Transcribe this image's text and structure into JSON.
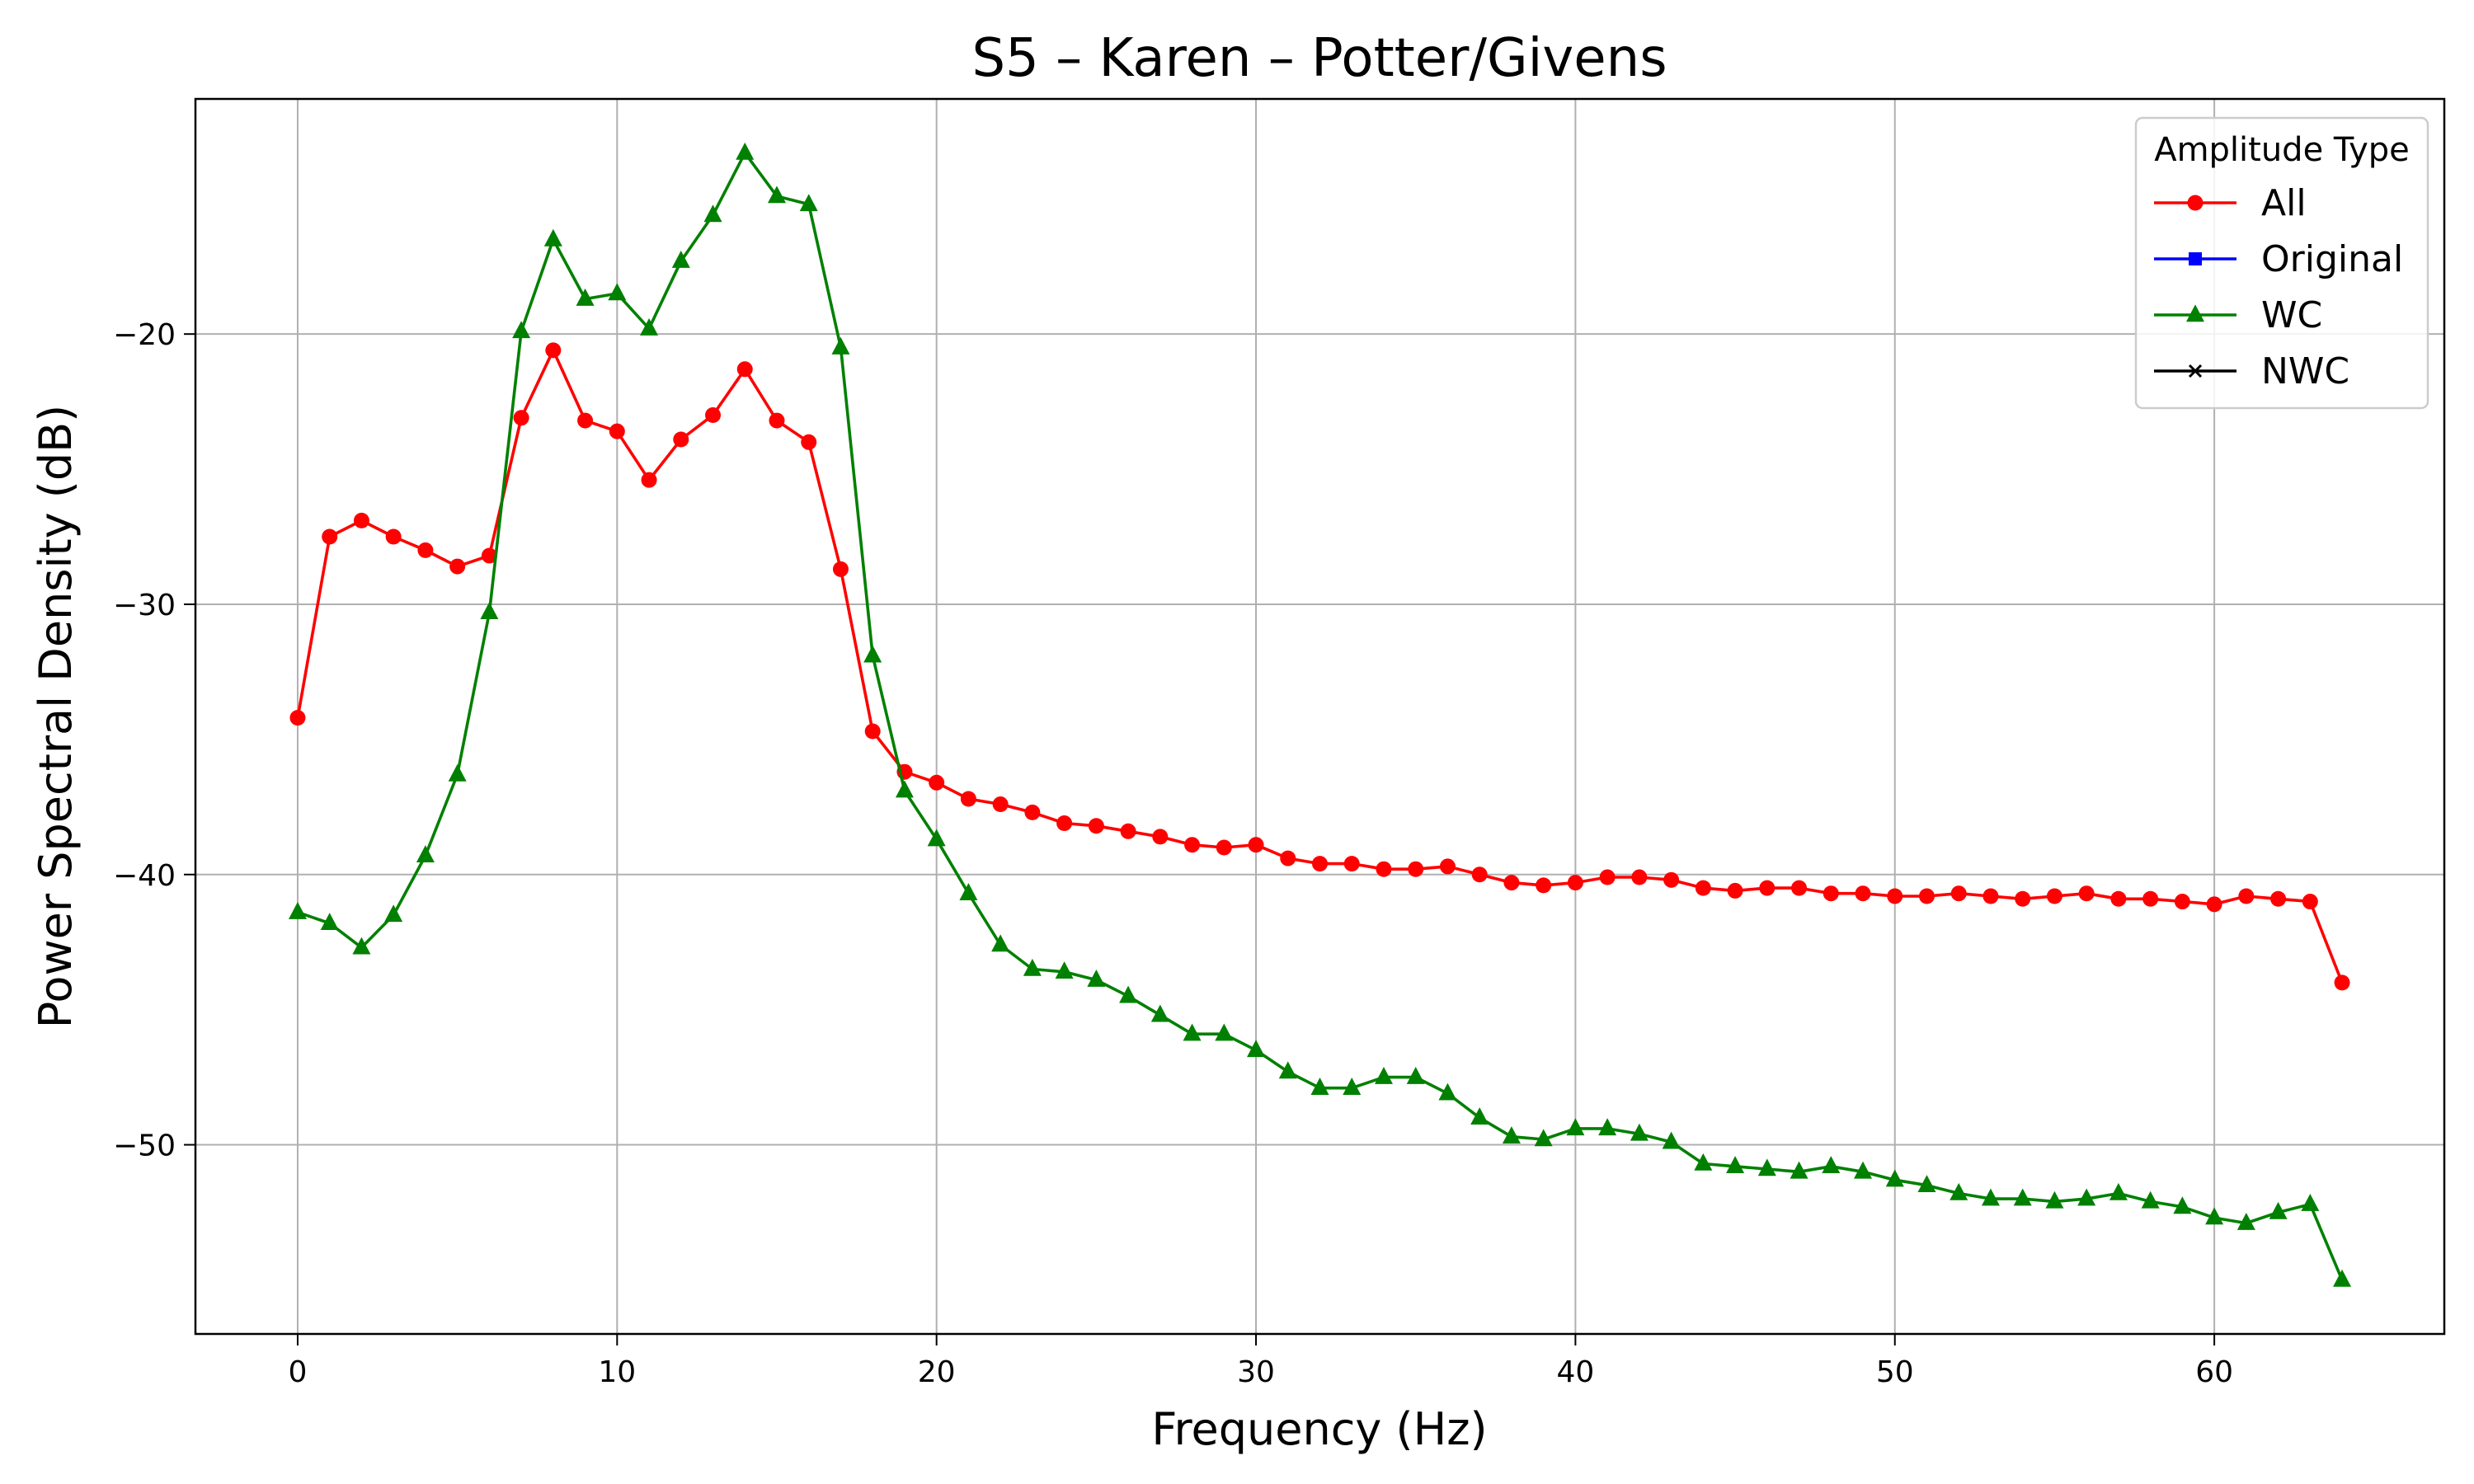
{
  "chart_data": {
    "type": "line",
    "title": "S5 – Karen – Potter/Givens",
    "xlabel": "Frequency (Hz)",
    "ylabel": "Power Spectral Density (dB)",
    "xlim": [
      -3.2,
      67.2
    ],
    "ylim": [
      -57.0,
      -11.3
    ],
    "xticks": [
      0,
      10,
      20,
      30,
      40,
      50,
      60
    ],
    "xtick_labels": [
      "0",
      "10",
      "20",
      "30",
      "40",
      "50",
      "60"
    ],
    "yticks": [
      -20,
      -30,
      -40,
      -50
    ],
    "ytick_labels": [
      "−20",
      "−30",
      "−40",
      "−50"
    ],
    "grid": true,
    "legend": {
      "title": "Amplitude Type",
      "placement": "top-right",
      "entries": [
        {
          "label": "All",
          "color": "#ff0000",
          "marker": "circle"
        },
        {
          "label": "Original",
          "color": "#0000ff",
          "marker": "square"
        },
        {
          "label": "WC",
          "color": "#008000",
          "marker": "triangle"
        },
        {
          "label": "NWC",
          "color": "#000000",
          "marker": "x"
        }
      ]
    },
    "x": [
      0,
      1,
      2,
      3,
      4,
      5,
      6,
      7,
      8,
      9,
      10,
      11,
      12,
      13,
      14,
      15,
      16,
      17,
      18,
      19,
      20,
      21,
      22,
      23,
      24,
      25,
      26,
      27,
      28,
      29,
      30,
      31,
      32,
      33,
      34,
      35,
      36,
      37,
      38,
      39,
      40,
      41,
      42,
      43,
      44,
      45,
      46,
      47,
      48,
      49,
      50,
      51,
      52,
      53,
      54,
      55,
      56,
      57,
      58,
      59,
      60,
      61,
      62,
      63,
      64
    ],
    "series": [
      {
        "name": "All",
        "color": "#ff0000",
        "marker": "circle",
        "values": [
          -34.2,
          -27.5,
          -26.9,
          -27.5,
          -28.0,
          -28.6,
          -28.2,
          -23.1,
          -20.6,
          -23.2,
          -23.6,
          -25.4,
          -23.9,
          -23.0,
          -21.3,
          -23.2,
          -24.0,
          -28.7,
          -34.7,
          -36.2,
          -36.6,
          -37.2,
          -37.4,
          -37.7,
          -38.1,
          -38.2,
          -38.4,
          -38.6,
          -38.9,
          -39.0,
          -38.9,
          -39.4,
          -39.6,
          -39.6,
          -39.8,
          -39.8,
          -39.7,
          -40.0,
          -40.3,
          -40.4,
          -40.3,
          -40.1,
          -40.1,
          -40.2,
          -40.5,
          -40.6,
          -40.5,
          -40.5,
          -40.7,
          -40.7,
          -40.8,
          -40.8,
          -40.7,
          -40.8,
          -40.9,
          -40.8,
          -40.7,
          -40.9,
          -40.9,
          -41.0,
          -41.1,
          -40.8,
          -40.9,
          -41.0,
          -44.0
        ]
      },
      {
        "name": "WC",
        "color": "#008000",
        "marker": "triangle",
        "values": [
          -41.4,
          -41.8,
          -42.7,
          -41.5,
          -39.3,
          -36.3,
          -30.3,
          -19.9,
          -16.5,
          -18.7,
          -18.5,
          -19.8,
          -17.3,
          -15.6,
          -13.3,
          -14.9,
          -15.2,
          -20.5,
          -31.9,
          -36.9,
          -38.7,
          -40.7,
          -42.6,
          -43.5,
          -43.6,
          -43.9,
          -44.5,
          -45.2,
          -45.9,
          -45.9,
          -46.5,
          -47.3,
          -47.9,
          -47.9,
          -47.5,
          -47.5,
          -48.1,
          -49.0,
          -49.7,
          -49.8,
          -49.4,
          -49.4,
          -49.6,
          -49.9,
          -50.7,
          -50.8,
          -50.9,
          -51.0,
          -50.8,
          -51.0,
          -51.3,
          -51.5,
          -51.8,
          -52.0,
          -52.0,
          -52.1,
          -52.0,
          -51.8,
          -52.1,
          -52.3,
          -52.7,
          -52.9,
          -52.5,
          -52.2,
          -55.0
        ]
      }
    ]
  }
}
